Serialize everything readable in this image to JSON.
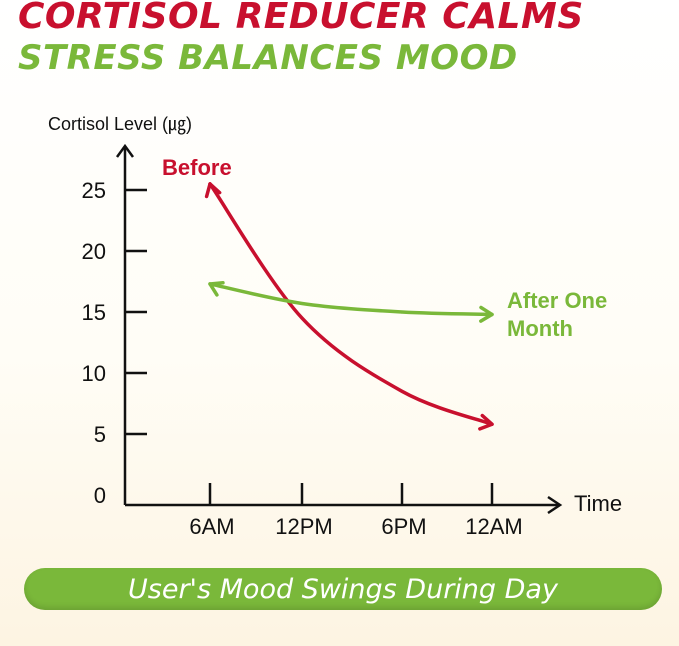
{
  "headline": {
    "line1": "CORTISOL REDUCER CALMS",
    "line2": "STRESS BALANCES MOOD"
  },
  "colors": {
    "red": "#c8102e",
    "green": "#7ab83a",
    "axis": "#111111"
  },
  "chart_data": {
    "type": "line",
    "ylabel": "Cortisol Level (㎍)",
    "xlabel": "Time",
    "y_ticks": [
      "25",
      "20",
      "15",
      "10",
      "5",
      "0"
    ],
    "x_ticks": [
      "6AM",
      "12PM",
      "6PM",
      "12AM"
    ],
    "ylim": [
      0,
      28
    ],
    "series": [
      {
        "name": "Before",
        "x": [
          "6AM",
          "12PM",
          "6PM",
          "12AM"
        ],
        "y": [
          25.5,
          14.5,
          8.5,
          5.8
        ]
      },
      {
        "name": "After One Month",
        "x": [
          "6AM",
          "12PM",
          "6PM",
          "12AM"
        ],
        "y": [
          17.3,
          15.7,
          15.0,
          14.8
        ]
      }
    ],
    "series_labels": {
      "before": "Before",
      "after_line1": "After One",
      "after_line2": "Month"
    }
  },
  "banner": {
    "text": "User's Mood Swings During Day",
    "color": "#7ab83a"
  }
}
